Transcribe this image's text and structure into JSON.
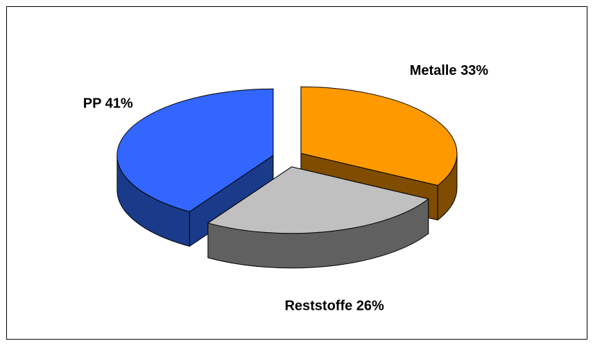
{
  "chart_data": {
    "type": "pie3d",
    "categories": [
      "Metalle",
      "Reststoffe",
      "PP"
    ],
    "values": [
      33,
      26,
      41
    ],
    "value_labels": [
      "33%",
      "26%",
      "41%"
    ],
    "colors": [
      "#ff9900",
      "#c0c0c0",
      "#3366ff"
    ],
    "side_colors": [
      "#7f4c00",
      "#606060",
      "#1a3a8a"
    ],
    "exploded": true
  }
}
